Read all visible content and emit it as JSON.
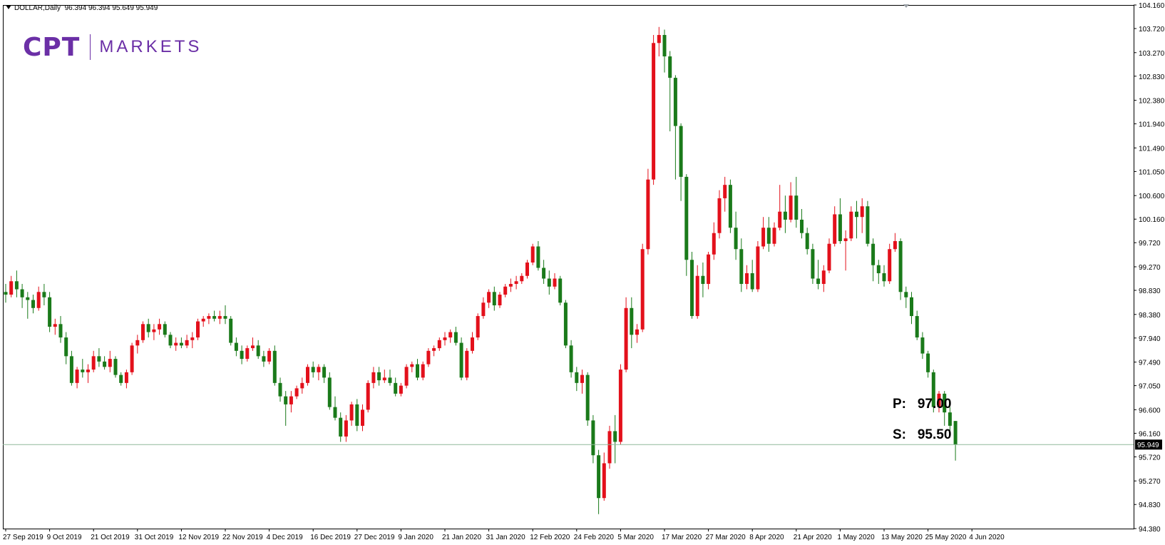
{
  "header": {
    "symbol_label": "DOLLAR,Daily",
    "ohlc_label": "96.394 96.394 95.649 95.949"
  },
  "logo": {
    "mark_text": "CPT",
    "word_text": "MARKETS",
    "color": "#6b2fa6"
  },
  "levels": {
    "p_label": "P:",
    "p_value": "97.00",
    "s_label": "S:",
    "s_value": "95.50"
  },
  "colors": {
    "bull": "#e3101b",
    "bear": "#1a7a1a",
    "current_line": "#8fb89a",
    "price_tag_bg": "#000000",
    "price_tag_fg": "#ffffff"
  },
  "chart_data": {
    "type": "candlestick",
    "title": "",
    "ylim": [
      94.38,
      104.16
    ],
    "current_price": 95.949,
    "current_price_label": "95.949",
    "y_ticks": [
      104.16,
      103.72,
      103.27,
      102.83,
      102.38,
      101.94,
      101.49,
      101.05,
      100.6,
      100.16,
      99.72,
      99.27,
      98.83,
      98.38,
      97.94,
      97.49,
      97.05,
      96.6,
      96.16,
      95.72,
      95.27,
      94.83,
      94.38
    ],
    "y_tick_labels": [
      "104.160",
      "103.720",
      "103.270",
      "102.830",
      "102.380",
      "101.940",
      "101.490",
      "101.050",
      "100.600",
      "100.160",
      "99.720",
      "99.270",
      "98.830",
      "98.380",
      "97.940",
      "97.490",
      "97.050",
      "96.600",
      "96.160",
      "95.720",
      "95.270",
      "94.830",
      "94.380"
    ],
    "x_tick_labels": [
      {
        "label": "27 Sep 2019",
        "index": 0
      },
      {
        "label": "9 Oct 2019",
        "index": 8
      },
      {
        "label": "21 Oct 2019",
        "index": 16
      },
      {
        "label": "31 Oct 2019",
        "index": 24
      },
      {
        "label": "12 Nov 2019",
        "index": 32
      },
      {
        "label": "22 Nov 2019",
        "index": 40
      },
      {
        "label": "4 Dec 2019",
        "index": 48
      },
      {
        "label": "16 Dec 2019",
        "index": 56
      },
      {
        "label": "27 Dec 2019",
        "index": 64
      },
      {
        "label": "9 Jan 2020",
        "index": 72
      },
      {
        "label": "21 Jan 2020",
        "index": 80
      },
      {
        "label": "31 Jan 2020",
        "index": 88
      },
      {
        "label": "12 Feb 2020",
        "index": 96
      },
      {
        "label": "24 Feb 2020",
        "index": 104
      },
      {
        "label": "5 Mar 2020",
        "index": 112
      },
      {
        "label": "17 Mar 2020",
        "index": 120
      },
      {
        "label": "27 Mar 2020",
        "index": 128
      },
      {
        "label": "8 Apr 2020",
        "index": 136
      },
      {
        "label": "21 Apr 2020",
        "index": 144
      },
      {
        "label": "1 May 2020",
        "index": 152
      },
      {
        "label": "13 May 2020",
        "index": 160
      },
      {
        "label": "25 May 2020",
        "index": 168
      },
      {
        "label": "4 Jun 2020",
        "index": 176
      }
    ],
    "ohlc": [
      [
        98.8,
        98.95,
        98.6,
        98.75
      ],
      [
        98.75,
        99.1,
        98.7,
        99.0
      ],
      [
        99.0,
        99.2,
        98.7,
        98.85
      ],
      [
        98.85,
        98.95,
        98.5,
        98.7
      ],
      [
        98.7,
        98.8,
        98.3,
        98.65
      ],
      [
        98.65,
        98.75,
        98.4,
        98.5
      ],
      [
        98.5,
        98.9,
        98.45,
        98.8
      ],
      [
        98.8,
        98.95,
        98.55,
        98.7
      ],
      [
        98.7,
        98.8,
        98.05,
        98.15
      ],
      [
        98.15,
        98.3,
        98.0,
        98.2
      ],
      [
        98.2,
        98.35,
        97.85,
        97.95
      ],
      [
        97.95,
        98.05,
        97.45,
        97.6
      ],
      [
        97.6,
        97.7,
        97.05,
        97.1
      ],
      [
        97.1,
        97.4,
        97.0,
        97.35
      ],
      [
        97.35,
        97.55,
        97.2,
        97.3
      ],
      [
        97.3,
        97.45,
        97.1,
        97.35
      ],
      [
        97.35,
        97.7,
        97.3,
        97.6
      ],
      [
        97.6,
        97.75,
        97.4,
        97.5
      ],
      [
        97.5,
        97.6,
        97.35,
        97.4
      ],
      [
        97.4,
        97.7,
        97.3,
        97.55
      ],
      [
        97.55,
        97.6,
        97.2,
        97.25
      ],
      [
        97.25,
        97.3,
        97.05,
        97.1
      ],
      [
        97.1,
        97.35,
        97.0,
        97.3
      ],
      [
        97.3,
        97.85,
        97.25,
        97.8
      ],
      [
        97.8,
        98.0,
        97.65,
        97.9
      ],
      [
        97.9,
        98.25,
        97.85,
        98.2
      ],
      [
        98.2,
        98.3,
        97.95,
        98.05
      ],
      [
        98.05,
        98.2,
        97.9,
        98.1
      ],
      [
        98.1,
        98.3,
        98.0,
        98.2
      ],
      [
        98.2,
        98.25,
        97.95,
        98.0
      ],
      [
        98.0,
        98.05,
        97.75,
        97.8
      ],
      [
        97.8,
        97.95,
        97.7,
        97.85
      ],
      [
        97.85,
        97.95,
        97.75,
        97.8
      ],
      [
        97.8,
        98.0,
        97.75,
        97.9
      ],
      [
        97.9,
        98.05,
        97.75,
        97.95
      ],
      [
        97.95,
        98.3,
        97.9,
        98.25
      ],
      [
        98.25,
        98.35,
        98.15,
        98.3
      ],
      [
        98.3,
        98.4,
        98.2,
        98.35
      ],
      [
        98.35,
        98.45,
        98.25,
        98.3
      ],
      [
        98.3,
        98.45,
        98.2,
        98.35
      ],
      [
        98.35,
        98.55,
        98.2,
        98.3
      ],
      [
        98.3,
        98.35,
        97.8,
        97.85
      ],
      [
        97.85,
        97.95,
        97.6,
        97.7
      ],
      [
        97.7,
        97.8,
        97.45,
        97.55
      ],
      [
        97.55,
        97.8,
        97.5,
        97.75
      ],
      [
        97.75,
        97.95,
        97.7,
        97.8
      ],
      [
        97.8,
        97.9,
        97.55,
        97.6
      ],
      [
        97.6,
        97.7,
        97.4,
        97.5
      ],
      [
        97.5,
        97.75,
        97.45,
        97.7
      ],
      [
        97.7,
        97.8,
        97.05,
        97.1
      ],
      [
        97.1,
        97.2,
        96.75,
        96.85
      ],
      [
        96.85,
        96.95,
        96.3,
        96.7
      ],
      [
        96.7,
        96.95,
        96.55,
        96.85
      ],
      [
        96.85,
        97.05,
        96.8,
        97.0
      ],
      [
        97.0,
        97.2,
        96.9,
        97.1
      ],
      [
        97.1,
        97.45,
        97.05,
        97.4
      ],
      [
        97.4,
        97.5,
        97.2,
        97.3
      ],
      [
        97.3,
        97.45,
        97.15,
        97.4
      ],
      [
        97.4,
        97.45,
        97.1,
        97.2
      ],
      [
        97.2,
        97.3,
        96.6,
        96.65
      ],
      [
        96.65,
        96.85,
        96.4,
        96.45
      ],
      [
        96.45,
        96.55,
        96.0,
        96.1
      ],
      [
        96.1,
        96.5,
        96.0,
        96.4
      ],
      [
        96.4,
        96.75,
        96.3,
        96.7
      ],
      [
        96.7,
        96.8,
        96.2,
        96.3
      ],
      [
        96.3,
        96.7,
        96.2,
        96.6
      ],
      [
        96.6,
        97.15,
        96.55,
        97.1
      ],
      [
        97.1,
        97.4,
        97.0,
        97.3
      ],
      [
        97.3,
        97.4,
        97.05,
        97.15
      ],
      [
        97.15,
        97.35,
        97.1,
        97.2
      ],
      [
        97.2,
        97.35,
        97.05,
        97.1
      ],
      [
        97.1,
        97.2,
        96.85,
        96.9
      ],
      [
        96.9,
        97.1,
        96.85,
        97.05
      ],
      [
        97.05,
        97.45,
        97.0,
        97.4
      ],
      [
        97.4,
        97.5,
        97.3,
        97.45
      ],
      [
        97.45,
        97.55,
        97.15,
        97.2
      ],
      [
        97.2,
        97.5,
        97.15,
        97.45
      ],
      [
        97.45,
        97.75,
        97.4,
        97.7
      ],
      [
        97.7,
        97.8,
        97.6,
        97.75
      ],
      [
        97.75,
        97.95,
        97.7,
        97.9
      ],
      [
        97.9,
        98.05,
        97.8,
        97.95
      ],
      [
        97.95,
        98.1,
        97.85,
        98.05
      ],
      [
        98.05,
        98.15,
        97.8,
        97.85
      ],
      [
        97.85,
        97.95,
        97.15,
        97.2
      ],
      [
        97.2,
        97.75,
        97.15,
        97.7
      ],
      [
        97.7,
        98.05,
        97.65,
        97.95
      ],
      [
        97.95,
        98.4,
        97.9,
        98.35
      ],
      [
        98.35,
        98.7,
        98.3,
        98.6
      ],
      [
        98.6,
        98.85,
        98.5,
        98.8
      ],
      [
        98.8,
        98.9,
        98.45,
        98.55
      ],
      [
        98.55,
        98.8,
        98.5,
        98.75
      ],
      [
        98.75,
        98.95,
        98.7,
        98.9
      ],
      [
        98.9,
        99.05,
        98.8,
        98.95
      ],
      [
        98.95,
        99.1,
        98.85,
        99.0
      ],
      [
        99.0,
        99.15,
        98.95,
        99.1
      ],
      [
        99.1,
        99.4,
        99.05,
        99.35
      ],
      [
        99.35,
        99.7,
        99.3,
        99.65
      ],
      [
        99.65,
        99.75,
        99.2,
        99.25
      ],
      [
        99.25,
        99.4,
        98.95,
        99.05
      ],
      [
        99.05,
        99.2,
        98.75,
        98.9
      ],
      [
        98.9,
        99.15,
        98.85,
        99.05
      ],
      [
        99.05,
        99.1,
        98.55,
        98.6
      ],
      [
        98.6,
        98.65,
        97.75,
        97.8
      ],
      [
        97.8,
        97.9,
        97.2,
        97.3
      ],
      [
        97.3,
        97.4,
        96.95,
        97.1
      ],
      [
        97.1,
        97.35,
        96.9,
        97.25
      ],
      [
        97.25,
        97.3,
        96.3,
        96.4
      ],
      [
        96.4,
        96.5,
        95.6,
        95.75
      ],
      [
        95.75,
        95.85,
        94.65,
        94.95
      ],
      [
        94.95,
        95.8,
        94.9,
        95.6
      ],
      [
        95.6,
        96.3,
        95.5,
        96.2
      ],
      [
        96.2,
        96.5,
        95.6,
        96.0
      ],
      [
        96.0,
        97.45,
        95.95,
        97.35
      ],
      [
        97.35,
        98.7,
        97.3,
        98.5
      ],
      [
        98.5,
        98.7,
        97.75,
        98.0
      ],
      [
        98.0,
        98.2,
        97.85,
        98.1
      ],
      [
        98.1,
        99.7,
        98.05,
        99.6
      ],
      [
        99.6,
        101.1,
        99.5,
        100.9
      ],
      [
        100.9,
        103.6,
        100.8,
        103.45
      ],
      [
        103.45,
        103.75,
        103.2,
        103.6
      ],
      [
        103.6,
        103.7,
        102.9,
        103.2
      ],
      [
        103.2,
        103.3,
        101.8,
        102.8
      ],
      [
        102.8,
        102.85,
        100.9,
        101.9
      ],
      [
        101.9,
        101.95,
        100.5,
        100.95
      ],
      [
        100.95,
        101.0,
        99.1,
        99.4
      ],
      [
        99.4,
        99.55,
        98.3,
        98.35
      ],
      [
        98.35,
        99.3,
        98.3,
        99.1
      ],
      [
        99.1,
        99.35,
        98.7,
        98.95
      ],
      [
        98.95,
        99.55,
        98.85,
        99.5
      ],
      [
        99.5,
        100.1,
        99.4,
        99.9
      ],
      [
        99.9,
        100.7,
        99.8,
        100.55
      ],
      [
        100.55,
        100.95,
        100.3,
        100.8
      ],
      [
        100.8,
        100.9,
        99.9,
        100.0
      ],
      [
        100.0,
        100.3,
        99.4,
        99.6
      ],
      [
        99.6,
        99.8,
        98.8,
        98.95
      ],
      [
        98.95,
        99.3,
        98.85,
        99.15
      ],
      [
        99.15,
        99.4,
        98.8,
        98.85
      ],
      [
        98.85,
        99.75,
        98.8,
        99.65
      ],
      [
        99.65,
        100.2,
        99.6,
        100.0
      ],
      [
        100.0,
        100.2,
        99.55,
        99.7
      ],
      [
        99.7,
        100.1,
        99.65,
        100.0
      ],
      [
        100.0,
        100.8,
        99.95,
        100.3
      ],
      [
        100.3,
        100.6,
        99.9,
        100.15
      ],
      [
        100.15,
        100.85,
        100.1,
        100.6
      ],
      [
        100.6,
        100.95,
        100.0,
        100.15
      ],
      [
        100.15,
        100.35,
        99.8,
        99.9
      ],
      [
        99.9,
        100.0,
        99.5,
        99.6
      ],
      [
        99.6,
        99.7,
        98.95,
        99.05
      ],
      [
        99.05,
        99.4,
        98.85,
        98.95
      ],
      [
        98.95,
        99.3,
        98.8,
        99.2
      ],
      [
        99.2,
        99.8,
        99.15,
        99.7
      ],
      [
        99.7,
        100.4,
        99.65,
        100.25
      ],
      [
        100.25,
        100.55,
        99.7,
        99.75
      ],
      [
        99.75,
        99.95,
        99.2,
        99.8
      ],
      [
        99.8,
        100.4,
        99.75,
        100.3
      ],
      [
        100.3,
        100.5,
        99.8,
        100.2
      ],
      [
        100.2,
        100.55,
        99.9,
        100.4
      ],
      [
        100.4,
        100.5,
        99.65,
        99.7
      ],
      [
        99.7,
        99.8,
        99.0,
        99.3
      ],
      [
        99.3,
        99.4,
        98.95,
        99.15
      ],
      [
        99.15,
        99.3,
        98.9,
        99.0
      ],
      [
        99.0,
        99.7,
        98.95,
        99.6
      ],
      [
        99.6,
        99.9,
        99.55,
        99.75
      ],
      [
        99.75,
        99.8,
        98.65,
        98.8
      ],
      [
        98.8,
        98.9,
        98.5,
        98.7
      ],
      [
        98.7,
        98.8,
        98.2,
        98.35
      ],
      [
        98.35,
        98.45,
        97.9,
        97.95
      ],
      [
        97.95,
        98.05,
        97.55,
        97.65
      ],
      [
        97.65,
        97.7,
        97.2,
        97.3
      ],
      [
        97.3,
        97.35,
        96.55,
        96.65
      ],
      [
        96.65,
        96.95,
        96.55,
        96.9
      ],
      [
        96.9,
        96.95,
        96.3,
        96.55
      ],
      [
        96.55,
        96.65,
        96.2,
        96.3
      ],
      [
        96.39,
        96.39,
        95.65,
        95.95
      ]
    ]
  }
}
